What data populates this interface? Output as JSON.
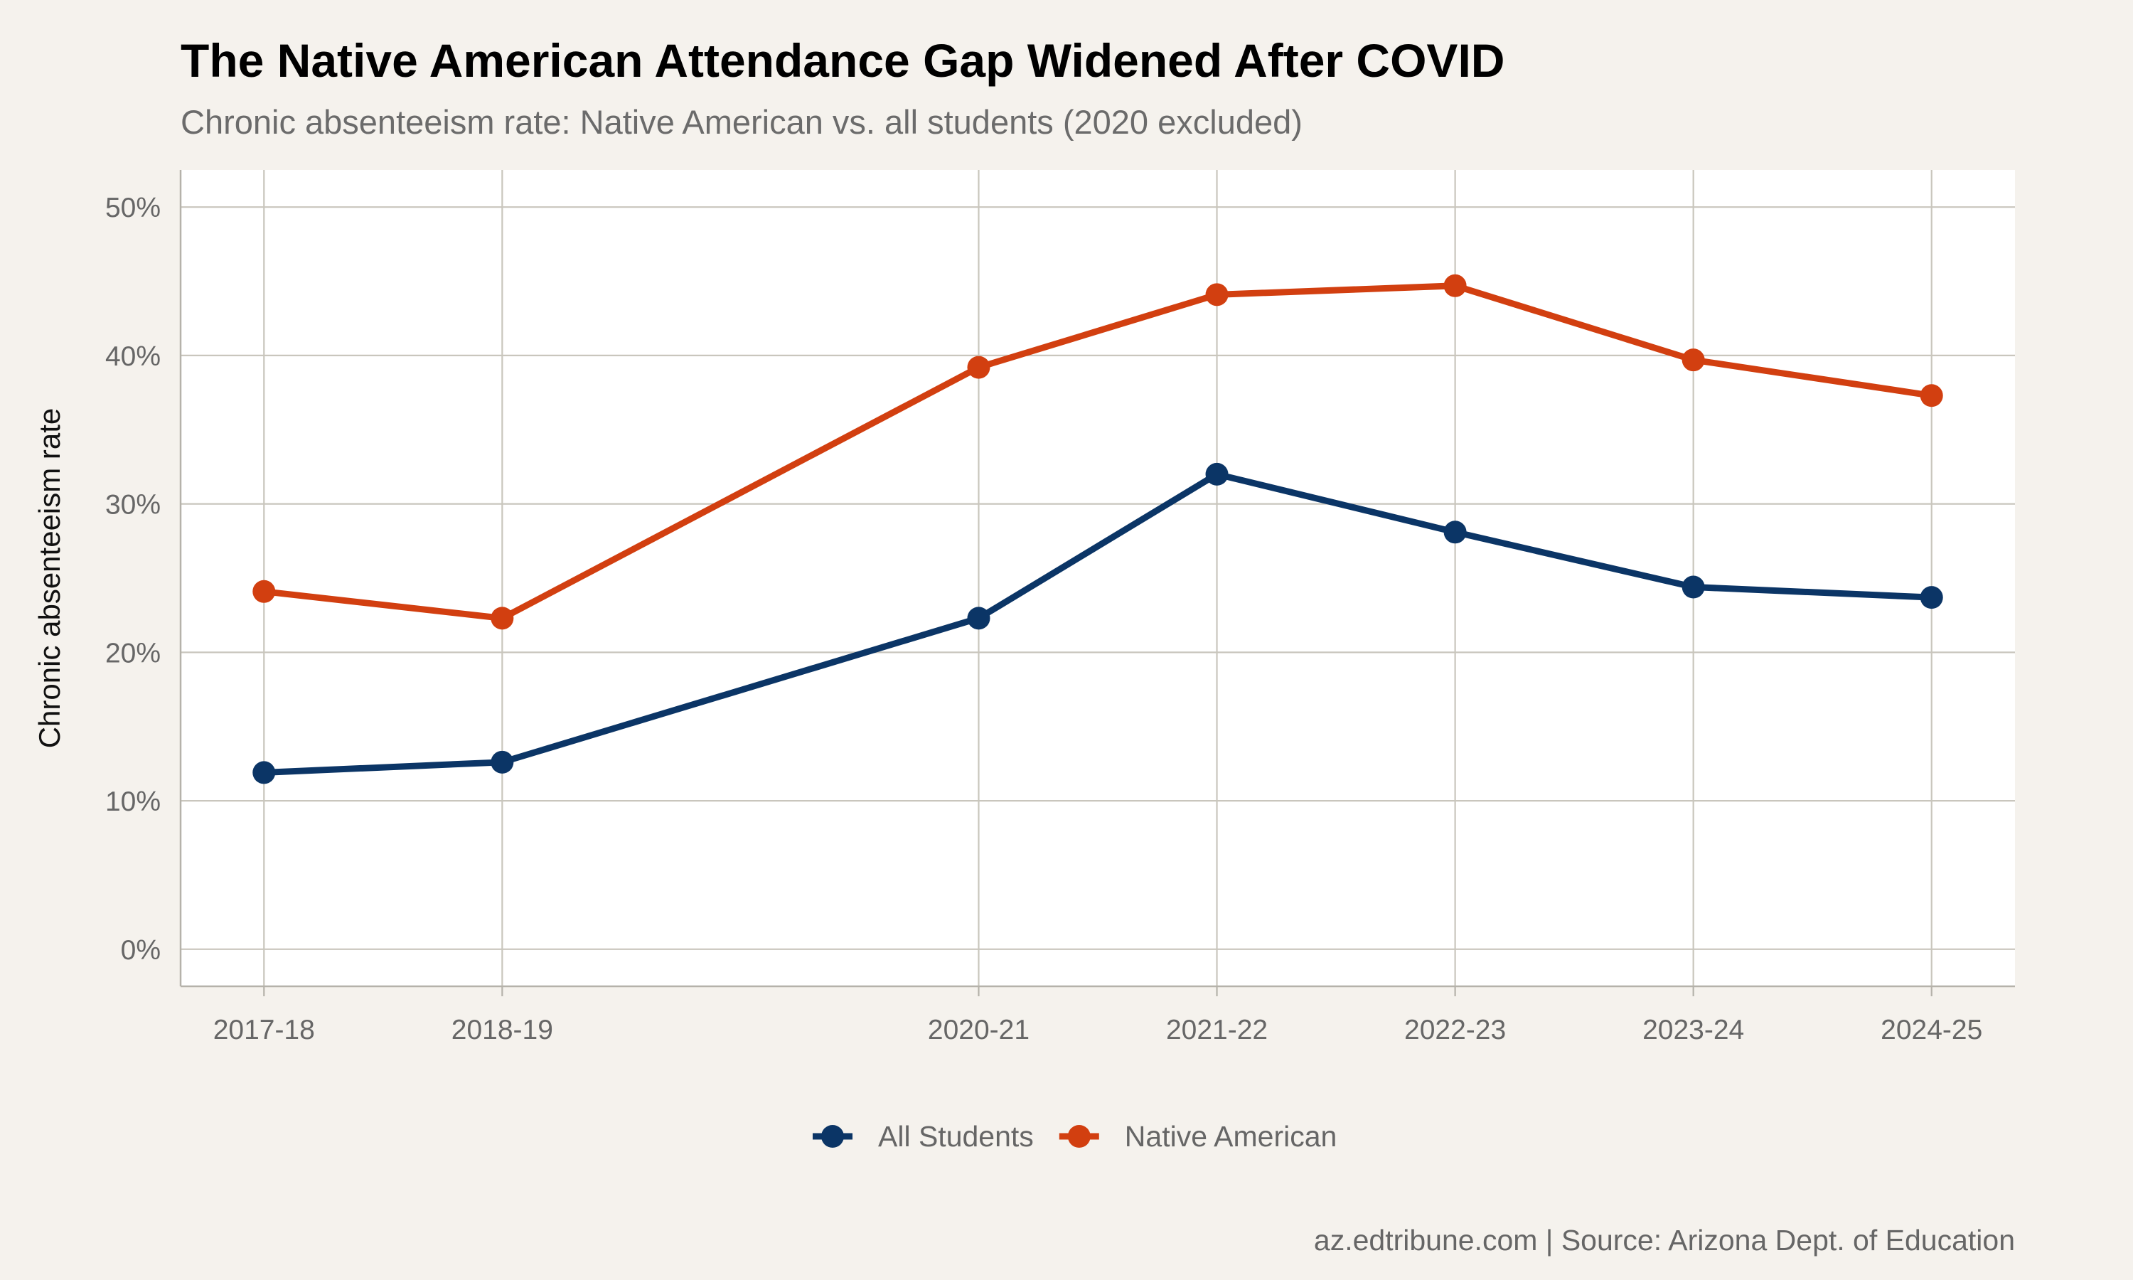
{
  "chart_data": {
    "type": "line",
    "title": "The Native American Attendance Gap Widened After COVID",
    "subtitle": "Chronic absenteeism rate: Native American vs. all students (2020 excluded)",
    "xlabel": "",
    "ylabel": "Chronic absenteeism rate",
    "caption": "az.edtribune.com | Source: Arizona Dept. of Education",
    "x": [
      "2017-18",
      "2018-19",
      "2020-21",
      "2021-22",
      "2022-23",
      "2023-24",
      "2024-25"
    ],
    "x_numeric": [
      2017,
      2018,
      2020,
      2021,
      2022,
      2023,
      2024
    ],
    "xlim": [
      2016.65,
      2024.35
    ],
    "ylim": [
      -2.5,
      52.5
    ],
    "yticks": [
      0,
      10,
      20,
      30,
      40,
      50
    ],
    "ytick_labels": [
      "0%",
      "10%",
      "20%",
      "30%",
      "40%",
      "50%"
    ],
    "grid": true,
    "legend_position": "bottom",
    "series": [
      {
        "name": "All Students",
        "color": "#0b3566",
        "values": [
          11.9,
          12.6,
          22.3,
          32.0,
          28.1,
          24.4,
          23.7
        ]
      },
      {
        "name": "Native American",
        "color": "#d23f10",
        "values": [
          24.1,
          22.3,
          39.2,
          44.1,
          44.7,
          39.7,
          37.3
        ]
      }
    ]
  }
}
